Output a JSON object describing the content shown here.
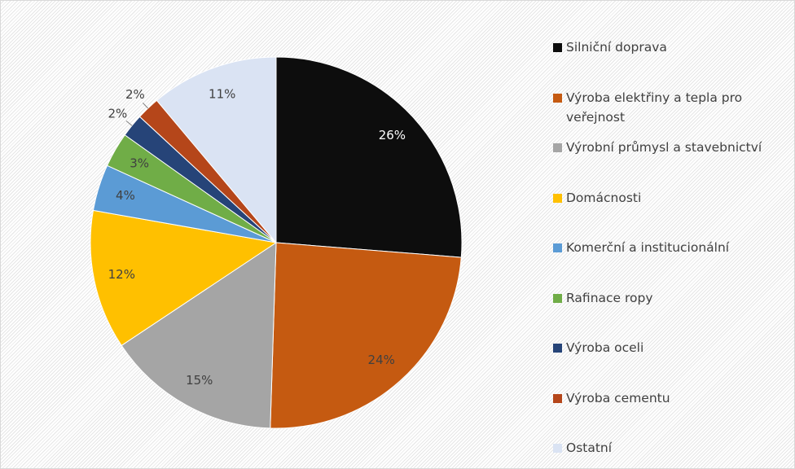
{
  "chart_data": {
    "type": "pie",
    "categories": [
      "Silniční doprava",
      "Výroba elektřiny a tepla pro veřejnost",
      "Výrobní průmysl a stavebnictví",
      "Domácnosti",
      "Komerční a institucionální",
      "Rafinace ropy",
      "Výroba oceli",
      "Výroba cementu",
      "Ostatní"
    ],
    "values": [
      26,
      24,
      15,
      12,
      4,
      3,
      2,
      2,
      11
    ],
    "value_labels": [
      "26%",
      "24%",
      "15%",
      "12%",
      "4%",
      "3%",
      "2%",
      "2%",
      "11%"
    ],
    "colors": [
      "#0d0d0d",
      "#c55a11",
      "#a5a5a5",
      "#ffc000",
      "#5b9bd5",
      "#70ad47",
      "#264478",
      "#b5461a",
      "#dae3f3"
    ],
    "legend": "right"
  }
}
